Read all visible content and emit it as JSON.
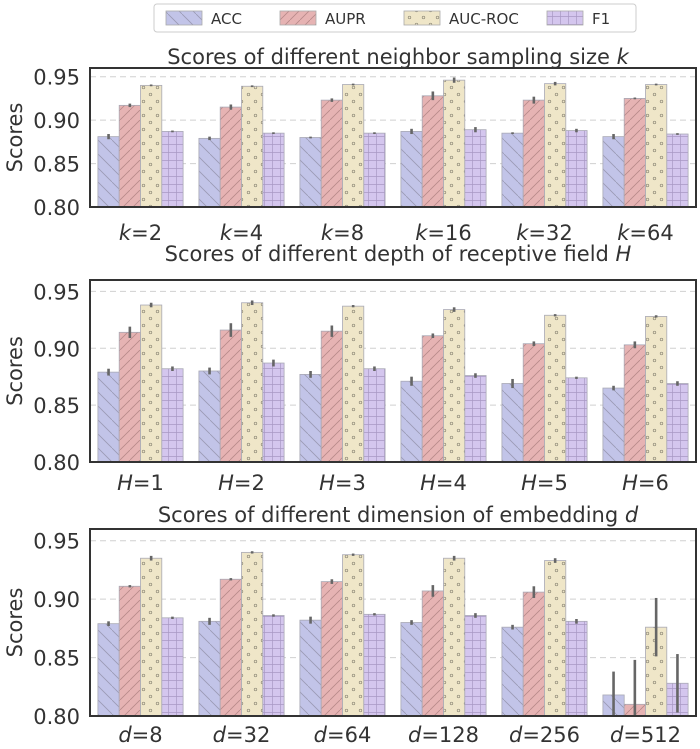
{
  "legend": {
    "placement": "top-center",
    "items": [
      {
        "label": "ACC",
        "color": "#c2c4e8",
        "pattern": "diagonal"
      },
      {
        "label": "AUPR",
        "color": "#e6b3b3",
        "pattern": "diagonal-fine"
      },
      {
        "label": "AUC-ROC",
        "color": "#efe6c8",
        "pattern": "dots"
      },
      {
        "label": "F1",
        "color": "#d4c6ee",
        "pattern": "grid"
      }
    ]
  },
  "colors": {
    "ACC": "#c2c4e8",
    "AUPR": "#e6b3b3",
    "AUC-ROC": "#efe6c8",
    "F1": "#d4c6ee",
    "error_bar": "#666666",
    "grid": "#d0d0d0",
    "axis": "#333333"
  },
  "chart_data": [
    {
      "type": "bar",
      "title_prefix": "Scores of different neighbor sampling size ",
      "title_var": "k",
      "ylabel": "Scores",
      "ylim": [
        0.8,
        0.96
      ],
      "yticks": [
        "0.80",
        "0.85",
        "0.90",
        "0.95"
      ],
      "ytick_values": [
        0.8,
        0.85,
        0.9,
        0.95
      ],
      "grid": true,
      "category_var": "k",
      "category_values": [
        "2",
        "4",
        "8",
        "16",
        "32",
        "64"
      ],
      "series": [
        {
          "name": "ACC",
          "values": [
            0.881,
            0.879,
            0.88,
            0.887,
            0.885,
            0.881
          ],
          "errors": [
            0.003,
            0.002,
            0.001,
            0.003,
            0.001,
            0.003
          ]
        },
        {
          "name": "AUPR",
          "values": [
            0.917,
            0.915,
            0.923,
            0.928,
            0.923,
            0.925
          ],
          "errors": [
            0.002,
            0.003,
            0.002,
            0.005,
            0.004,
            0.001
          ]
        },
        {
          "name": "AUC-ROC",
          "values": [
            0.94,
            0.939,
            0.941,
            0.946,
            0.942,
            0.941
          ],
          "errors": [
            0.001,
            0.001,
            0.001,
            0.003,
            0.002,
            0.001
          ]
        },
        {
          "name": "F1",
          "values": [
            0.887,
            0.885,
            0.885,
            0.889,
            0.888,
            0.884
          ],
          "errors": [
            0.001,
            0.001,
            0.001,
            0.003,
            0.002,
            0.001
          ]
        }
      ]
    },
    {
      "type": "bar",
      "title_prefix": "Scores of different depth of receptive field ",
      "title_var": "H",
      "ylabel": "Scores",
      "ylim": [
        0.8,
        0.96
      ],
      "yticks": [
        "0.80",
        "0.85",
        "0.90",
        "0.95"
      ],
      "ytick_values": [
        0.8,
        0.85,
        0.9,
        0.95
      ],
      "grid": true,
      "category_var": "H",
      "category_values": [
        "1",
        "2",
        "3",
        "4",
        "5",
        "6"
      ],
      "series": [
        {
          "name": "ACC",
          "values": [
            0.879,
            0.88,
            0.877,
            0.871,
            0.869,
            0.865
          ],
          "errors": [
            0.003,
            0.003,
            0.003,
            0.004,
            0.004,
            0.002
          ]
        },
        {
          "name": "AUPR",
          "values": [
            0.914,
            0.916,
            0.915,
            0.911,
            0.904,
            0.903
          ],
          "errors": [
            0.005,
            0.006,
            0.005,
            0.002,
            0.002,
            0.003
          ]
        },
        {
          "name": "AUC-ROC",
          "values": [
            0.938,
            0.94,
            0.937,
            0.934,
            0.929,
            0.928
          ],
          "errors": [
            0.002,
            0.002,
            0.001,
            0.002,
            0.001,
            0.001
          ]
        },
        {
          "name": "F1",
          "values": [
            0.882,
            0.887,
            0.882,
            0.876,
            0.874,
            0.869
          ],
          "errors": [
            0.002,
            0.003,
            0.002,
            0.002,
            0.001,
            0.002
          ]
        }
      ]
    },
    {
      "type": "bar",
      "title_prefix": "Scores of different dimension of embedding ",
      "title_var": "d",
      "ylabel": "Scores",
      "ylim": [
        0.8,
        0.96
      ],
      "yticks": [
        "0.80",
        "0.85",
        "0.90",
        "0.95"
      ],
      "ytick_values": [
        0.8,
        0.85,
        0.9,
        0.95
      ],
      "grid": true,
      "category_var": "d",
      "category_values": [
        "8",
        "32",
        "64",
        "128",
        "256",
        "512"
      ],
      "series": [
        {
          "name": "ACC",
          "values": [
            0.879,
            0.881,
            0.882,
            0.88,
            0.876,
            0.818
          ],
          "errors": [
            0.002,
            0.003,
            0.003,
            0.002,
            0.002,
            0.02
          ]
        },
        {
          "name": "AUPR",
          "values": [
            0.911,
            0.917,
            0.915,
            0.907,
            0.906,
            0.81
          ],
          "errors": [
            0.001,
            0.001,
            0.002,
            0.005,
            0.005,
            0.038
          ]
        },
        {
          "name": "AUC-ROC",
          "values": [
            0.935,
            0.94,
            0.938,
            0.935,
            0.933,
            0.876
          ],
          "errors": [
            0.002,
            0.001,
            0.001,
            0.002,
            0.002,
            0.025
          ]
        },
        {
          "name": "F1",
          "values": [
            0.884,
            0.886,
            0.887,
            0.886,
            0.881,
            0.828
          ],
          "errors": [
            0.001,
            0.001,
            0.001,
            0.002,
            0.002,
            0.025
          ]
        }
      ]
    }
  ]
}
